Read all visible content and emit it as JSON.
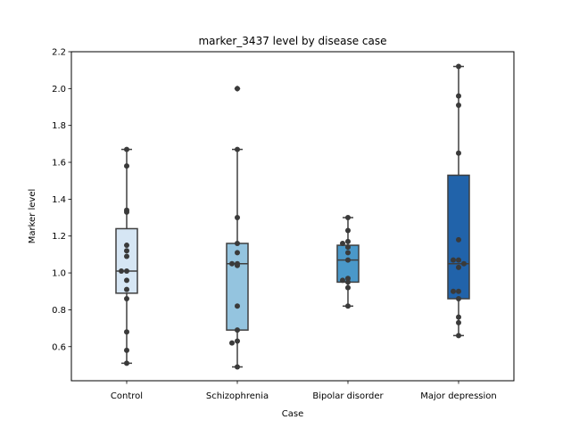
{
  "chart_data": {
    "type": "box",
    "title": "marker_3437 level by disease case",
    "xlabel": "Case",
    "ylabel": "Marker level",
    "ylim": [
      0.415,
      2.2
    ],
    "yticks": [
      "0.6",
      "0.8",
      "1.0",
      "1.2",
      "1.4",
      "1.6",
      "1.8",
      "2.0",
      "2.2"
    ],
    "categories": [
      "Control",
      "Schizophrenia",
      "Bipolar disorder",
      "Major depression"
    ],
    "grid": false,
    "legend": "none",
    "colors": {
      "box_fills": [
        "#d6e6f4",
        "#94c4df",
        "#4a98c9",
        "#2163aa"
      ],
      "lines": "#3f3f3f",
      "points": "#3a3a3a"
    },
    "boxes": [
      {
        "category": "Control",
        "whisker_low": 0.51,
        "q1": 0.89,
        "median": 1.01,
        "q3": 1.24,
        "whisker_high": 1.67,
        "outliers": [],
        "points": [
          1.67,
          1.58,
          1.34,
          1.33,
          1.15,
          1.12,
          1.09,
          1.01,
          1.01,
          0.96,
          0.91,
          0.86,
          0.68,
          0.58,
          0.51
        ]
      },
      {
        "category": "Schizophrenia",
        "whisker_low": 0.49,
        "q1": 0.69,
        "median": 1.05,
        "q3": 1.16,
        "whisker_high": 1.67,
        "outliers": [
          2.0
        ],
        "points": [
          2.0,
          1.67,
          1.3,
          1.16,
          1.11,
          1.05,
          1.05,
          1.04,
          0.82,
          0.69,
          0.63,
          0.62,
          0.49
        ]
      },
      {
        "category": "Bipolar disorder",
        "whisker_low": 0.82,
        "q1": 0.95,
        "median": 1.07,
        "q3": 1.15,
        "whisker_high": 1.3,
        "outliers": [],
        "points": [
          1.3,
          1.23,
          1.17,
          1.16,
          1.14,
          1.11,
          1.07,
          0.97,
          0.96,
          0.95,
          0.92,
          0.82
        ]
      },
      {
        "category": "Major depression",
        "whisker_low": 0.66,
        "q1": 0.86,
        "median": 1.05,
        "q3": 1.53,
        "whisker_high": 2.12,
        "outliers": [],
        "points": [
          2.12,
          1.96,
          1.91,
          1.65,
          1.18,
          1.07,
          1.07,
          1.05,
          1.03,
          0.9,
          0.9,
          0.86,
          0.76,
          0.73,
          0.66
        ]
      }
    ]
  }
}
